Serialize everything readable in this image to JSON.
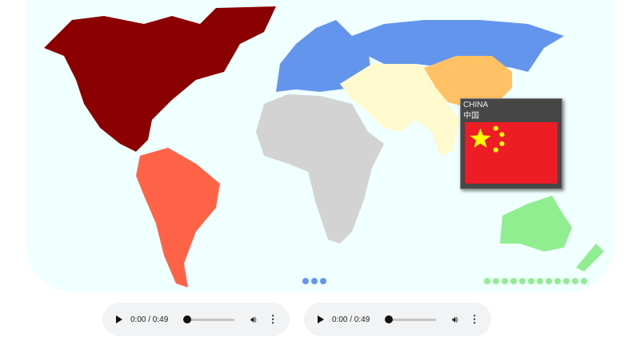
{
  "map": {
    "region_colors": {
      "north_america": "#8b0000",
      "south_america": "#ff6347",
      "europe": "#6495ed",
      "africa": "#d3d3d3",
      "asia": "#fffacd",
      "china": "#ffc163",
      "oceania": "#90ee90",
      "background": "#f0ffff"
    },
    "pager_left": {
      "count": 3,
      "color": "#6495ed"
    },
    "pager_right": {
      "count": 12,
      "color": "#90ee90"
    }
  },
  "tooltip": {
    "name": "CHINA",
    "native_name": "中国",
    "flag": "china-flag"
  },
  "players": [
    {
      "time": "0:00 / 0:49",
      "progress": 0,
      "icons": [
        "play-icon",
        "volume-icon",
        "more-icon"
      ]
    },
    {
      "time": "0:00 / 0:49",
      "progress": 0,
      "icons": [
        "play-icon",
        "volume-icon",
        "more-icon"
      ]
    }
  ]
}
